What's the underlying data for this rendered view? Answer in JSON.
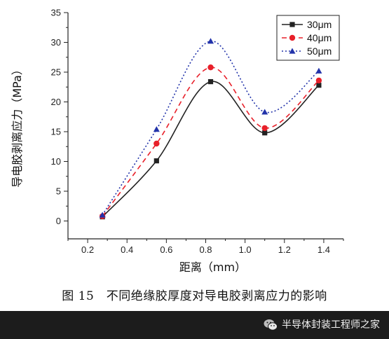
{
  "chart_data": {
    "type": "line",
    "xlabel": "距离（mm）",
    "ylabel": "导电胶剥离应力（MPa）",
    "xlim": [
      0.1,
      1.5
    ],
    "ylim": [
      -3,
      35
    ],
    "xticks": [
      "0.2",
      "0.4",
      "0.6",
      "0.8",
      "1.0",
      "1.2",
      "1.4"
    ],
    "xtick_values": [
      0.2,
      0.4,
      0.6,
      0.8,
      1.0,
      1.2,
      1.4
    ],
    "yticks": [
      "0",
      "5",
      "10",
      "15",
      "20",
      "25",
      "30",
      "35"
    ],
    "ytick_values": [
      0,
      5,
      10,
      15,
      20,
      25,
      30,
      35
    ],
    "legend_position": "top-right",
    "series": [
      {
        "name": "30μm",
        "color": "#222222",
        "marker": "square",
        "line": "solid",
        "x": [
          0.275,
          0.55,
          0.825,
          1.1,
          1.375
        ],
        "y": [
          0.7,
          10.1,
          23.4,
          14.8,
          22.8
        ]
      },
      {
        "name": "40μm",
        "color": "#e8202a",
        "marker": "circle",
        "line": "dashed",
        "x": [
          0.275,
          0.55,
          0.825,
          1.1,
          1.375
        ],
        "y": [
          0.8,
          13.0,
          25.8,
          15.6,
          23.6
        ]
      },
      {
        "name": "50μm",
        "color": "#2233aa",
        "marker": "triangle",
        "line": "dotted",
        "x": [
          0.275,
          0.55,
          0.825,
          1.1,
          1.375
        ],
        "y": [
          1.0,
          15.4,
          30.2,
          18.3,
          25.2
        ]
      }
    ]
  },
  "caption": "图 15　不同绝缘胶厚度对导电胶剥离应力的影响",
  "watermark": {
    "text": "半导体封装工程师之家",
    "icon": "wechat-icon"
  }
}
